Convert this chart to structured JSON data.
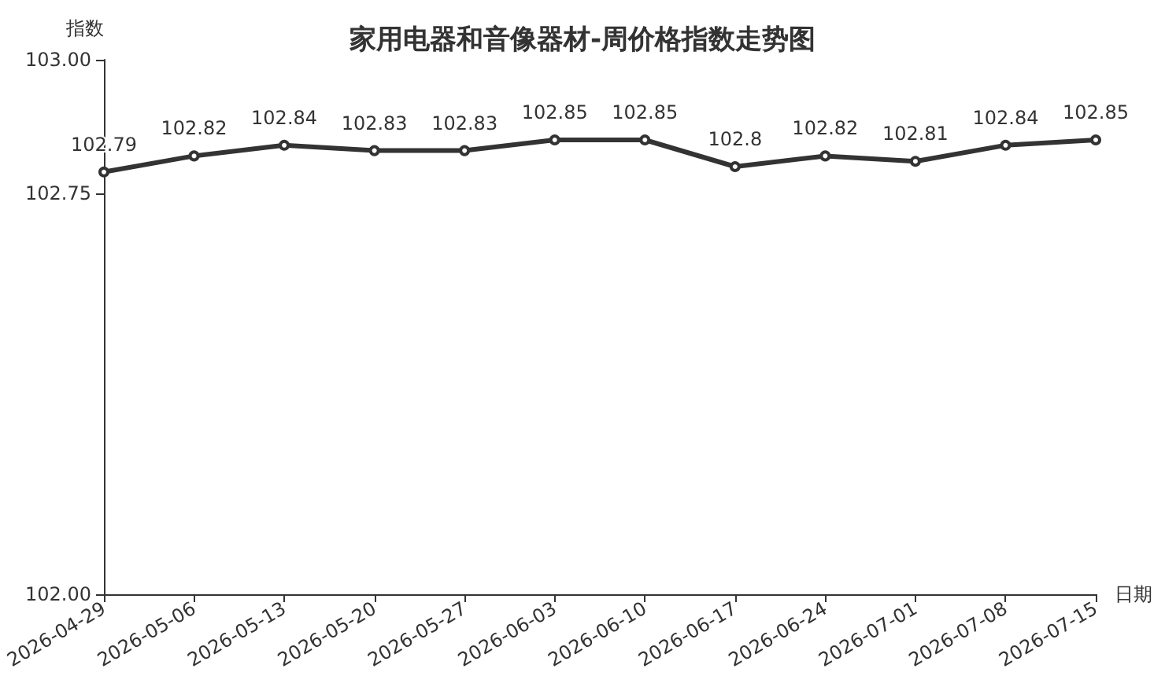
{
  "chart_data": {
    "type": "line",
    "title": "家用电器和音像器材-周价格指数走势图",
    "xlabel": "日期",
    "ylabel": "指数",
    "categories": [
      "2026-04-29",
      "2026-05-06",
      "2026-05-13",
      "2026-05-20",
      "2026-05-27",
      "2026-06-03",
      "2026-06-10",
      "2026-06-17",
      "2026-06-24",
      "2026-07-01",
      "2026-07-08",
      "2026-07-15"
    ],
    "series": [
      {
        "color": "#333333",
        "values": [
          102.79,
          102.82,
          102.84,
          102.83,
          102.83,
          102.85,
          102.85,
          102.8,
          102.82,
          102.81,
          102.84,
          102.85
        ]
      }
    ],
    "ylim": [
      102,
      103
    ],
    "yticks": [
      {
        "value": 102,
        "label": "102.00"
      },
      {
        "value": 102.75,
        "label": "102.75"
      },
      {
        "value": 103,
        "label": "103.00"
      }
    ],
    "grid": false,
    "marker": "circle",
    "line_style": "solid",
    "data_labels": true
  }
}
